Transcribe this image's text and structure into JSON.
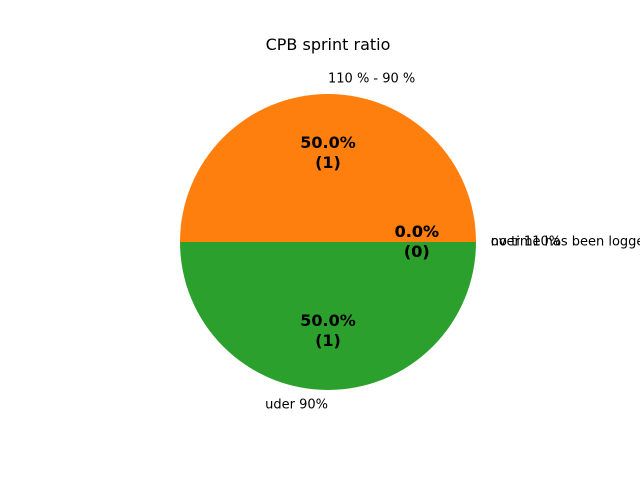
{
  "chart_data": {
    "type": "pie",
    "title": "CPB sprint ratio",
    "categories": [
      "no time has been logged",
      "110 % - 90 %",
      "uder 90%",
      "over 110%"
    ],
    "values": [
      0,
      1,
      1,
      0
    ],
    "pct_labels": [
      "0.0%\n(0)",
      "50.0%\n(1)",
      "50.0%\n(1)",
      "0.0%\n(0)"
    ],
    "colors": [
      "#1f77b4",
      "#ff7f0e",
      "#2ca02c",
      "#d62728"
    ],
    "start_angle_deg": 0,
    "direction": "counterclockwise",
    "legend": "none"
  }
}
